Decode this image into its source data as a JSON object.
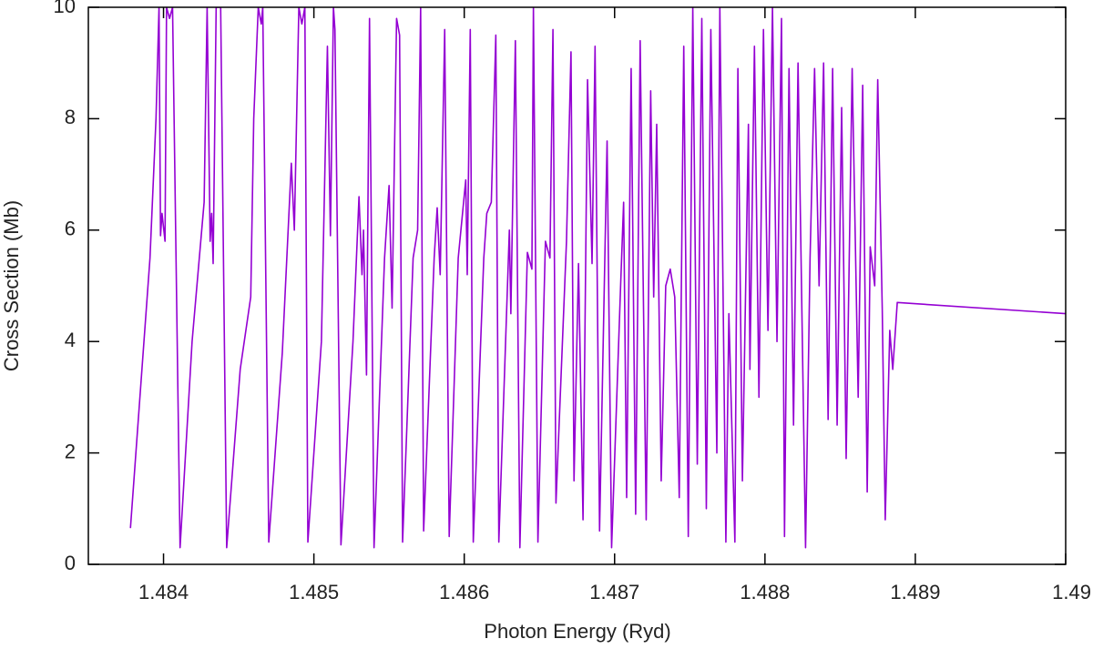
{
  "chart_data": {
    "type": "line",
    "xlabel": "Photon Energy (Ryd)",
    "ylabel": "Cross Section (Mb)",
    "xlim": [
      1.4835,
      1.49
    ],
    "ylim": [
      0,
      10
    ],
    "xticks": [
      1.484,
      1.485,
      1.486,
      1.487,
      1.488,
      1.489,
      1.49
    ],
    "yticks": [
      0,
      2,
      4,
      6,
      8,
      10
    ],
    "series": [
      {
        "color": "#9400d3",
        "x": [
          1.48378,
          1.48391,
          1.48395,
          1.48397,
          1.48398,
          1.48399,
          1.48401,
          1.48402,
          1.48404,
          1.48406,
          1.48411,
          1.48419,
          1.48427,
          1.48429,
          1.48431,
          1.48432,
          1.48433,
          1.48435,
          1.48438,
          1.48442,
          1.48451,
          1.48458,
          1.4846,
          1.48463,
          1.48465,
          1.48466,
          1.4847,
          1.48479,
          1.48485,
          1.48487,
          1.4849,
          1.48492,
          1.48494,
          1.48496,
          1.48505,
          1.48509,
          1.48511,
          1.48513,
          1.48514,
          1.48518,
          1.48526,
          1.4853,
          1.48532,
          1.48533,
          1.48535,
          1.48537,
          1.4854,
          1.48547,
          1.4855,
          1.48552,
          1.48555,
          1.48557,
          1.48559,
          1.48566,
          1.48569,
          1.48571,
          1.48573,
          1.4858,
          1.48582,
          1.48584,
          1.48587,
          1.4859,
          1.48596,
          1.48601,
          1.48602,
          1.48604,
          1.48606,
          1.48613,
          1.48615,
          1.48618,
          1.48621,
          1.48623,
          1.4863,
          1.48631,
          1.48634,
          1.48637,
          1.48642,
          1.48645,
          1.48646,
          1.48649,
          1.48654,
          1.48657,
          1.48659,
          1.48661,
          1.48668,
          1.48671,
          1.48673,
          1.48676,
          1.48679,
          1.48682,
          1.48685,
          1.48687,
          1.4869,
          1.48695,
          1.48698,
          1.48704,
          1.48706,
          1.48708,
          1.48711,
          1.48714,
          1.48717,
          1.48721,
          1.48724,
          1.48726,
          1.48728,
          1.48731,
          1.48734,
          1.48737,
          1.4874,
          1.48743,
          1.48746,
          1.48749,
          1.48752,
          1.48755,
          1.48758,
          1.48761,
          1.48764,
          1.48768,
          1.4877,
          1.48774,
          1.48776,
          1.4878,
          1.48782,
          1.48785,
          1.48789,
          1.4879,
          1.48793,
          1.48796,
          1.48799,
          1.48802,
          1.48805,
          1.48808,
          1.48811,
          1.48813,
          1.48816,
          1.48819,
          1.48822,
          1.48827,
          1.4883,
          1.48833,
          1.48836,
          1.48839,
          1.48842,
          1.48845,
          1.48848,
          1.48851,
          1.48854,
          1.48858,
          1.48862,
          1.48865,
          1.48868,
          1.4887,
          1.48873,
          1.48875,
          1.48878,
          1.4888,
          1.48883,
          1.48885,
          1.48888,
          1.49
        ],
        "values": [
          0.65,
          5.5,
          8.0,
          10,
          5.9,
          6.3,
          5.8,
          10,
          9.8,
          10,
          0.3,
          4,
          6.5,
          10,
          5.8,
          6.3,
          5.4,
          10,
          10,
          0.3,
          3.5,
          4.8,
          8,
          10,
          9.7,
          10,
          0.4,
          3.8,
          7.2,
          6.0,
          10,
          9.7,
          10,
          0.4,
          4,
          9.3,
          5.9,
          10,
          9.6,
          0.35,
          4,
          6.6,
          5.2,
          6.0,
          3.4,
          9.8,
          0.3,
          5.5,
          6.8,
          4.6,
          9.8,
          9.5,
          0.4,
          5.5,
          6.0,
          10,
          0.6,
          5.5,
          6.4,
          5.2,
          9.6,
          0.5,
          5.5,
          6.9,
          5.2,
          9.6,
          0.4,
          5.5,
          6.3,
          6.5,
          9.5,
          0.4,
          6.0,
          4.5,
          9.4,
          0.3,
          5.6,
          5.3,
          10,
          0.4,
          5.8,
          5.5,
          9.6,
          1.1,
          5.8,
          9.2,
          1.5,
          5.4,
          0.8,
          8.7,
          5.4,
          9.3,
          0.6,
          7.6,
          0.3,
          5.0,
          6.5,
          1.2,
          8.9,
          0.9,
          9.4,
          0.8,
          8.5,
          4.8,
          7.9,
          1.5,
          5.0,
          5.3,
          4.8,
          1.2,
          9.3,
          0.5,
          10,
          1.8,
          9.8,
          1.0,
          9.6,
          2.0,
          10,
          0.4,
          4.5,
          0.4,
          8.9,
          1.5,
          7.9,
          3.5,
          9.3,
          3.0,
          9.6,
          4.2,
          10,
          4.0,
          9.8,
          0.5,
          8.9,
          2.5,
          9.0,
          0.3,
          5.5,
          8.9,
          5.0,
          9.0,
          2.6,
          8.9,
          2.5,
          8.2,
          1.9,
          8.9,
          3.0,
          8.6,
          1.3,
          5.7,
          5.0,
          8.7,
          4.6,
          0.8,
          4.2,
          3.5,
          4.7,
          4.5
        ]
      }
    ]
  }
}
